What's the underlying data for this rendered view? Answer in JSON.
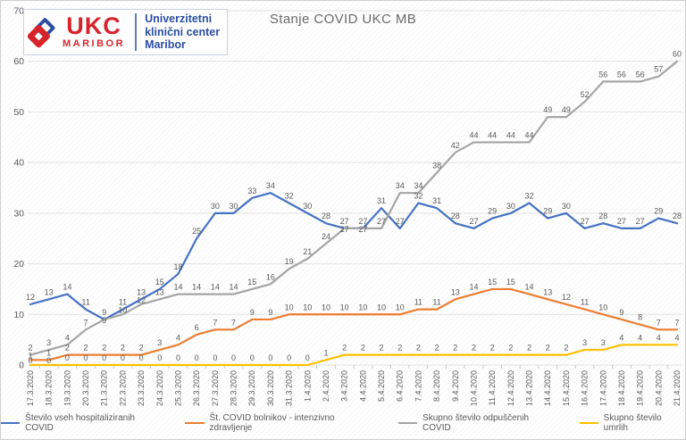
{
  "title": "Stanje COVID UKC MB",
  "logo": {
    "acronym": "UKC",
    "city": "MARIBOR",
    "org_lines": [
      "Univerzitetni",
      "klinični center",
      "Maribor"
    ],
    "red": "#d8232a",
    "blue": "#2b4ea2"
  },
  "y_axis": {
    "ticks": [
      0,
      10,
      20,
      30,
      40,
      50,
      60,
      70
    ]
  },
  "chart_data": {
    "type": "line",
    "title": "Stanje COVID UKC MB",
    "ylim": [
      0,
      70
    ],
    "grid": true,
    "legend_position": "bottom",
    "data_labels": true,
    "categories": [
      "17.3.2020",
      "18.3.2020",
      "19.3.2020",
      "20.3.2020",
      "21.3.2020",
      "22.3.2020",
      "23.3.2020",
      "24.3.2020",
      "25.3.2020",
      "26.3.2020",
      "27.3.2020",
      "28.3.2020",
      "29.3.2020",
      "30.3.2020",
      "31.3.2020",
      "1.4.2020",
      "2.4.2020",
      "3.4.2020",
      "4.4.2020",
      "5.4.2020",
      "6.4.2020",
      "7.4.2020",
      "8.4.2020",
      "9.4.2020",
      "10.4.2020",
      "11.4.2020",
      "12.4.2020",
      "13.4.2020",
      "14.4.2020",
      "15.4.2020",
      "16.4.2020",
      "17.4.2020",
      "18.4.2020",
      "19.4.2020",
      "20.4.2020",
      "21.4.2020"
    ],
    "series": [
      {
        "key": "hospitalized",
        "name": "Število vseh hospitaliziranih COVID",
        "color": "#4472C4",
        "values": [
          12,
          13,
          14,
          11,
          9,
          11,
          13,
          15,
          18,
          25,
          30,
          30,
          33,
          34,
          32,
          30,
          28,
          27,
          27,
          31,
          27,
          32,
          31,
          28,
          27,
          29,
          30,
          32,
          29,
          30,
          27,
          28,
          27,
          27,
          29,
          28
        ]
      },
      {
        "key": "icu",
        "name": "Št. COVID bolnikov - intenzivno zdravljenje",
        "color": "#ED7D31",
        "values": [
          1,
          1,
          2,
          2,
          2,
          2,
          2,
          3,
          4,
          6,
          7,
          7,
          9,
          9,
          10,
          10,
          10,
          10,
          10,
          10,
          10,
          11,
          11,
          13,
          14,
          15,
          15,
          14,
          13,
          12,
          11,
          10,
          9,
          8,
          7,
          7
        ]
      },
      {
        "key": "discharged",
        "name": "Skupno število odpuščenih COVID",
        "color": "#A5A5A5",
        "values": [
          2,
          3,
          4,
          7,
          9,
          10,
          12,
          13,
          14,
          14,
          14,
          14,
          15,
          16,
          19,
          21,
          24,
          27,
          27,
          27,
          34,
          34,
          38,
          42,
          44,
          44,
          44,
          44,
          49,
          49,
          52,
          56,
          56,
          56,
          57,
          60
        ]
      },
      {
        "key": "deaths",
        "name": "Skupno število umrlih",
        "color": "#FFC000",
        "values": [
          0,
          0,
          0,
          0,
          0,
          0,
          0,
          0,
          0,
          0,
          0,
          0,
          0,
          0,
          0,
          0,
          1,
          2,
          2,
          2,
          2,
          2,
          2,
          2,
          2,
          2,
          2,
          2,
          2,
          2,
          3,
          3,
          4,
          4,
          4,
          4
        ]
      }
    ]
  }
}
